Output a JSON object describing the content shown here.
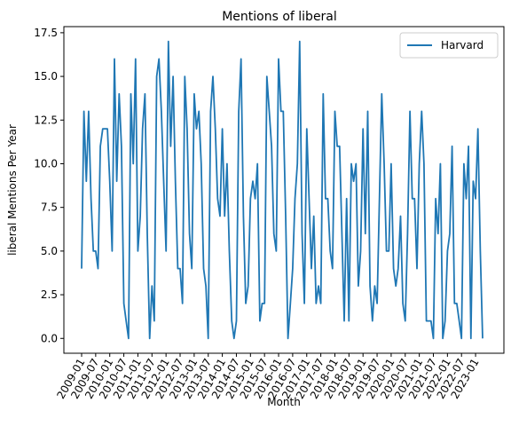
{
  "chart_data": {
    "type": "line",
    "title": "Mentions of liberal",
    "xlabel": "Month",
    "ylabel": "liberal Mentions Per Year",
    "ylim": [
      -0.85,
      17.85
    ],
    "yticks": [
      "0.0",
      "2.5",
      "5.0",
      "7.5",
      "10.0",
      "12.5",
      "15.0",
      "17.5"
    ],
    "xticks": [
      "2009-01",
      "2009-07",
      "2010-01",
      "2010-07",
      "2011-01",
      "2011-07",
      "2012-01",
      "2012-07",
      "2013-01",
      "2013-07",
      "2014-01",
      "2014-07",
      "2015-01",
      "2015-07",
      "2016-01",
      "2016-07",
      "2017-01",
      "2017-07",
      "2018-01",
      "2018-07",
      "2019-01",
      "2019-07",
      "2020-01",
      "2020-07",
      "2021-01",
      "2021-07",
      "2022-01",
      "2022-07",
      "2023-01"
    ],
    "legend_position": "top-right",
    "grid": false,
    "color": "#1f77b4",
    "x_start": "2009-01",
    "series": [
      {
        "name": "Harvard",
        "values": [
          4,
          13,
          9,
          13,
          8,
          5,
          5,
          4,
          11,
          12,
          12,
          12,
          9,
          5,
          16,
          9,
          14,
          11,
          2,
          1,
          0,
          14,
          10,
          16,
          5,
          7,
          12,
          14,
          6,
          0,
          3,
          1,
          15,
          16,
          13,
          9,
          5,
          17,
          11,
          15,
          9,
          4,
          4,
          2,
          15,
          12,
          6,
          4,
          14,
          12,
          13,
          10,
          4,
          3,
          0,
          13,
          15,
          12,
          8,
          7,
          12,
          7,
          10,
          5,
          1,
          0,
          1,
          13,
          16,
          7,
          2,
          3,
          8,
          9,
          8,
          10,
          1,
          2,
          2,
          15,
          13,
          11,
          6,
          5,
          16,
          13,
          13,
          7,
          0,
          2,
          4,
          8,
          10,
          17,
          6,
          2,
          12,
          8,
          4,
          7,
          2,
          3,
          2,
          14,
          8,
          8,
          5,
          4,
          13,
          11,
          11,
          6,
          1,
          8,
          1,
          10,
          9,
          10,
          3,
          5,
          12,
          6,
          13,
          3,
          1,
          3,
          2,
          8,
          14,
          10,
          5,
          5,
          10,
          4,
          3,
          4,
          7,
          2,
          1,
          6,
          13,
          8,
          8,
          4,
          10,
          13,
          10,
          1,
          1,
          1,
          0,
          8,
          6,
          10,
          0,
          1,
          5,
          6,
          11,
          2,
          2,
          1,
          0,
          10,
          8,
          11,
          0,
          9,
          8,
          12,
          5,
          0
        ]
      }
    ]
  }
}
